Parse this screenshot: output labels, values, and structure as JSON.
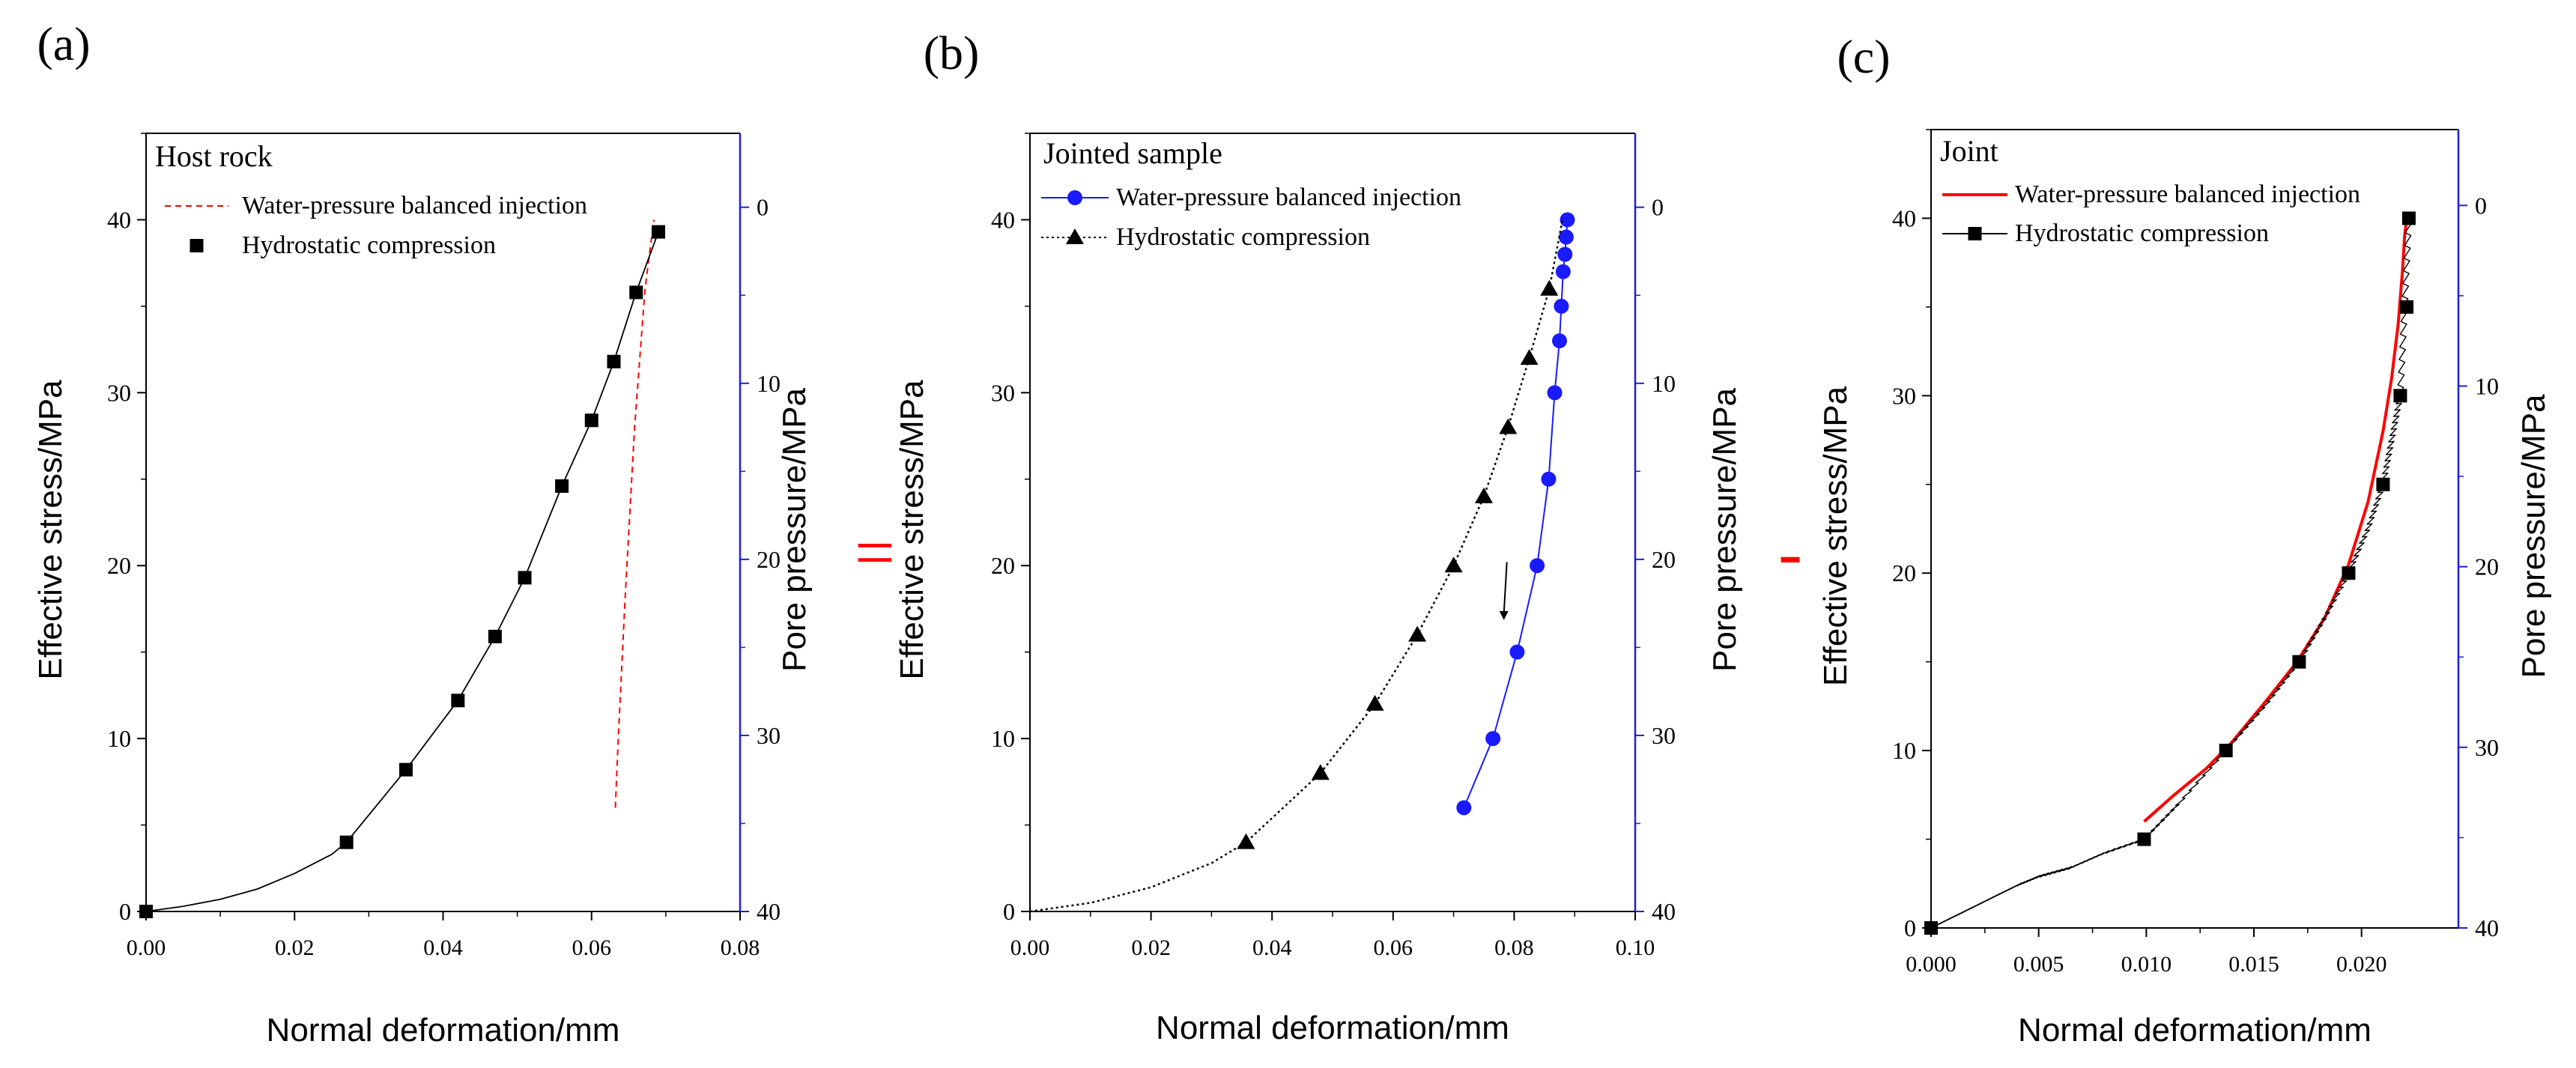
{
  "colors": {
    "axis": "#000000",
    "right_axis": "#1f1fd6",
    "red": "#ff0000",
    "blue": "#1a1aff",
    "black": "#000000"
  },
  "separators": {
    "equals": "=",
    "minus": "-"
  },
  "chart_data": [
    {
      "type": "line",
      "panel_label": "(a)",
      "legend_title": "Host rock",
      "xlabel": "Normal deformation/mm",
      "ylabel": "Effective stress/MPa",
      "y2label": "Pore pressure/MPa",
      "xlim": [
        0,
        0.08
      ],
      "ylim": [
        0,
        45
      ],
      "y2lim": [
        40,
        -4.2
      ],
      "x_ticks": [
        "0.00",
        "0.02",
        "0.04",
        "0.06",
        "0.08"
      ],
      "y_ticks": [
        "0",
        "10",
        "20",
        "30",
        "40"
      ],
      "y2_ticks": [
        "0",
        "10",
        "20",
        "30",
        "40"
      ],
      "series": [
        {
          "name": "Water-pressure balanced injection",
          "style": "dashed",
          "color": "red",
          "marker": "none",
          "x": [
            0.0632,
            0.0636,
            0.0645,
            0.0658,
            0.0672,
            0.0684
          ],
          "y": [
            6,
            10,
            18,
            28,
            36,
            40
          ]
        },
        {
          "name": "Hydrostatic compression",
          "style": "solid-thin",
          "color": "black",
          "marker": "square",
          "curve": {
            "x": [
              0,
              0.005,
              0.01,
              0.015,
              0.02,
              0.025,
              0.027,
              0.035,
              0.042,
              0.047,
              0.051,
              0.056,
              0.06,
              0.063,
              0.066,
              0.069
            ],
            "y": [
              0,
              0.3,
              0.7,
              1.3,
              2.2,
              3.3,
              4.0,
              8.2,
              12.2,
              15.9,
              19.3,
              24.6,
              28.4,
              31.8,
              35.8,
              39.3
            ]
          },
          "x": [
            0.0,
            0.027,
            0.035,
            0.042,
            0.047,
            0.051,
            0.056,
            0.06,
            0.063,
            0.066,
            0.069
          ],
          "y": [
            0,
            4.0,
            8.2,
            12.2,
            15.9,
            19.3,
            24.6,
            28.4,
            31.8,
            35.8,
            39.3
          ]
        }
      ]
    },
    {
      "type": "line",
      "panel_label": "(b)",
      "legend_title": "Jointed sample",
      "xlabel": "Normal deformation/mm",
      "ylabel": "Effective stress/MPa",
      "y2label": "Pore pressure/MPa",
      "xlim": [
        0,
        0.1
      ],
      "ylim": [
        0,
        45
      ],
      "y2lim": [
        40,
        -4.2
      ],
      "x_ticks": [
        "0.00",
        "0.02",
        "0.04",
        "0.06",
        "0.08",
        "0.10"
      ],
      "y_ticks": [
        "0",
        "10",
        "20",
        "30",
        "40"
      ],
      "y2_ticks": [
        "0",
        "10",
        "20",
        "30",
        "40"
      ],
      "series": [
        {
          "name": "Water-pressure balanced injection",
          "style": "solid",
          "color": "blue",
          "marker": "circle",
          "x": [
            0.0717,
            0.0765,
            0.0805,
            0.0838,
            0.0857,
            0.0867,
            0.0875,
            0.0878,
            0.0881,
            0.0884,
            0.0886,
            0.0888
          ],
          "y": [
            6,
            10,
            15,
            20,
            25,
            30,
            33,
            35,
            37,
            38,
            39,
            40
          ]
        },
        {
          "name": "Hydrostatic compression",
          "style": "dotted",
          "color": "black",
          "marker": "triangle",
          "curve": {
            "x": [
              0,
              0.01,
              0.02,
              0.03,
              0.0357,
              0.048,
              0.057,
              0.064,
              0.07,
              0.075,
              0.079,
              0.0825,
              0.0858,
              0.088
            ],
            "y": [
              0,
              0.5,
              1.4,
              2.8,
              4,
              8,
              12,
              16,
              20,
              24,
              28,
              32,
              36,
              40
            ]
          },
          "x": [
            0.0357,
            0.048,
            0.057,
            0.064,
            0.07,
            0.075,
            0.079,
            0.0825,
            0.0858
          ],
          "y": [
            4,
            8,
            12,
            16,
            20,
            24,
            28,
            32,
            36
          ]
        }
      ],
      "arrow": {
        "from_x": 0.0788,
        "from_y": 20.2,
        "to_x": 0.0783,
        "to_y": 17.2
      }
    },
    {
      "type": "line",
      "panel_label": "(c)",
      "legend_title": "Joint",
      "xlabel": "Normal deformation/mm",
      "ylabel": "Effective stress/MPa",
      "y2label": "Pore pressure/MPa",
      "xlim": [
        0,
        0.0245
      ],
      "ylim": [
        0,
        45
      ],
      "y2lim": [
        40,
        -4.2
      ],
      "x_ticks": [
        "0.000",
        "0.005",
        "0.010",
        "0.015",
        "0.020"
      ],
      "x_tick_values": [
        0,
        0.005,
        0.01,
        0.015,
        0.02
      ],
      "y_ticks": [
        "0",
        "10",
        "20",
        "30",
        "40"
      ],
      "y2_ticks": [
        "0",
        "10",
        "20",
        "30",
        "40"
      ],
      "series": [
        {
          "name": "Water-pressure balanced injection",
          "style": "solid-thick",
          "color": "red",
          "marker": "none",
          "x": [
            0.0099,
            0.0113,
            0.0128,
            0.014,
            0.0155,
            0.017,
            0.0183,
            0.0194,
            0.0203,
            0.021,
            0.0214,
            0.0217,
            0.0219,
            0.022,
            0.0221
          ],
          "y": [
            6,
            7.5,
            9,
            10.5,
            12.7,
            15,
            17.5,
            20.5,
            24,
            28,
            31,
            34,
            37,
            39,
            40
          ]
        },
        {
          "name": "Hydrostatic compression",
          "style": "noisy",
          "color": "black",
          "marker": "square",
          "curve": {
            "x": [
              0,
              0.001,
              0.002,
              0.003,
              0.004,
              0.005,
              0.0065,
              0.008,
              0.0099,
              0.0115,
              0.0137,
              0.0155,
              0.0171,
              0.0183,
              0.0194,
              0.0203,
              0.021,
              0.0214,
              0.0218,
              0.022,
              0.0222
            ],
            "y": [
              0,
              0.6,
              1.2,
              1.8,
              2.4,
              2.9,
              3.4,
              4.2,
              5.0,
              7.0,
              10.0,
              12.5,
              15.0,
              17.5,
              20.0,
              22.5,
              25.0,
              27.5,
              30.0,
              35.0,
              40.0
            ]
          },
          "x": [
            0.0,
            0.0099,
            0.0137,
            0.0171,
            0.0194,
            0.021,
            0.0218,
            0.0221,
            0.0222
          ],
          "y": [
            0,
            5,
            10,
            15,
            20,
            25,
            30,
            35,
            40
          ]
        }
      ]
    }
  ]
}
